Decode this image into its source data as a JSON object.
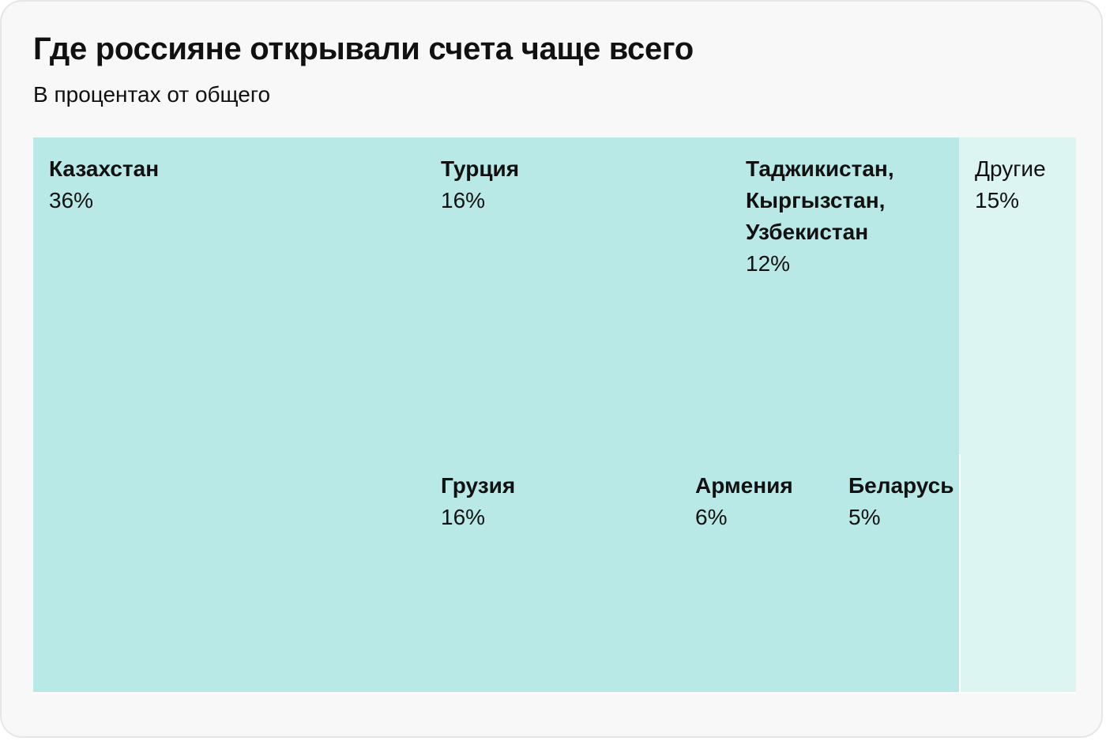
{
  "header": {
    "title": "Где россияне открывали счета чаще всего",
    "subtitle": "В процентах от общего"
  },
  "colors": {
    "main": "#b8e9e6",
    "other": "#dcf4f2",
    "divider": "#ffffff"
  },
  "chart_data": {
    "type": "treemap",
    "title": "Где россияне открывали счета чаще всего",
    "subtitle": "В процентах от общего",
    "unit": "%",
    "items": [
      {
        "name": "Казахстан",
        "value": 36,
        "label": "36%"
      },
      {
        "name": "Турция",
        "value": 16,
        "label": "16%"
      },
      {
        "name": "Таджикистан, Кыргызстан, Узбекистан",
        "value": 12,
        "label": "12%"
      },
      {
        "name": "Другие",
        "value": 15,
        "label": "15%"
      },
      {
        "name": "Грузия",
        "value": 16,
        "label": "16%"
      },
      {
        "name": "Армения",
        "value": 6,
        "label": "6%"
      },
      {
        "name": "Беларусь",
        "value": 5,
        "label": "5%"
      }
    ]
  }
}
